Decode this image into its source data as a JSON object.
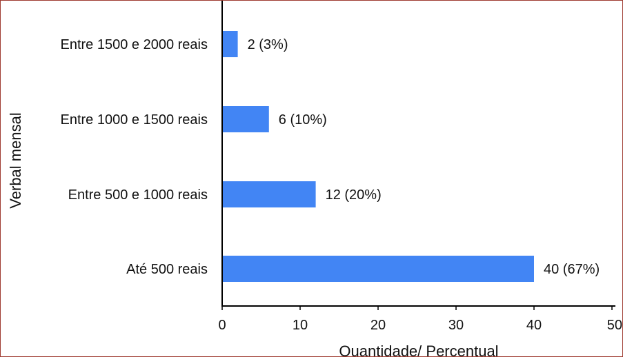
{
  "chart_data": {
    "type": "bar",
    "orientation": "horizontal",
    "categories": [
      "Entre 1500 e 2000 reais",
      "Entre 1000 e 1500 reais",
      "Entre 500 e 1000 reais",
      "Até 500 reais"
    ],
    "values": [
      2,
      6,
      12,
      40
    ],
    "data_labels": [
      "2 (3%)",
      "6 (10%)",
      "12 (20%)",
      "40 (67%)"
    ],
    "xlabel": "Quantidade/ Percentual",
    "ylabel": "Verbal mensal",
    "xlim": [
      0,
      50
    ],
    "x_ticks": [
      "0",
      "10",
      "20",
      "30",
      "40",
      "50"
    ],
    "grid": false,
    "legend": "none",
    "colors": {
      "bar": "#4285f4",
      "frame_border": "#9e3a2f",
      "axis": "#000000"
    }
  }
}
